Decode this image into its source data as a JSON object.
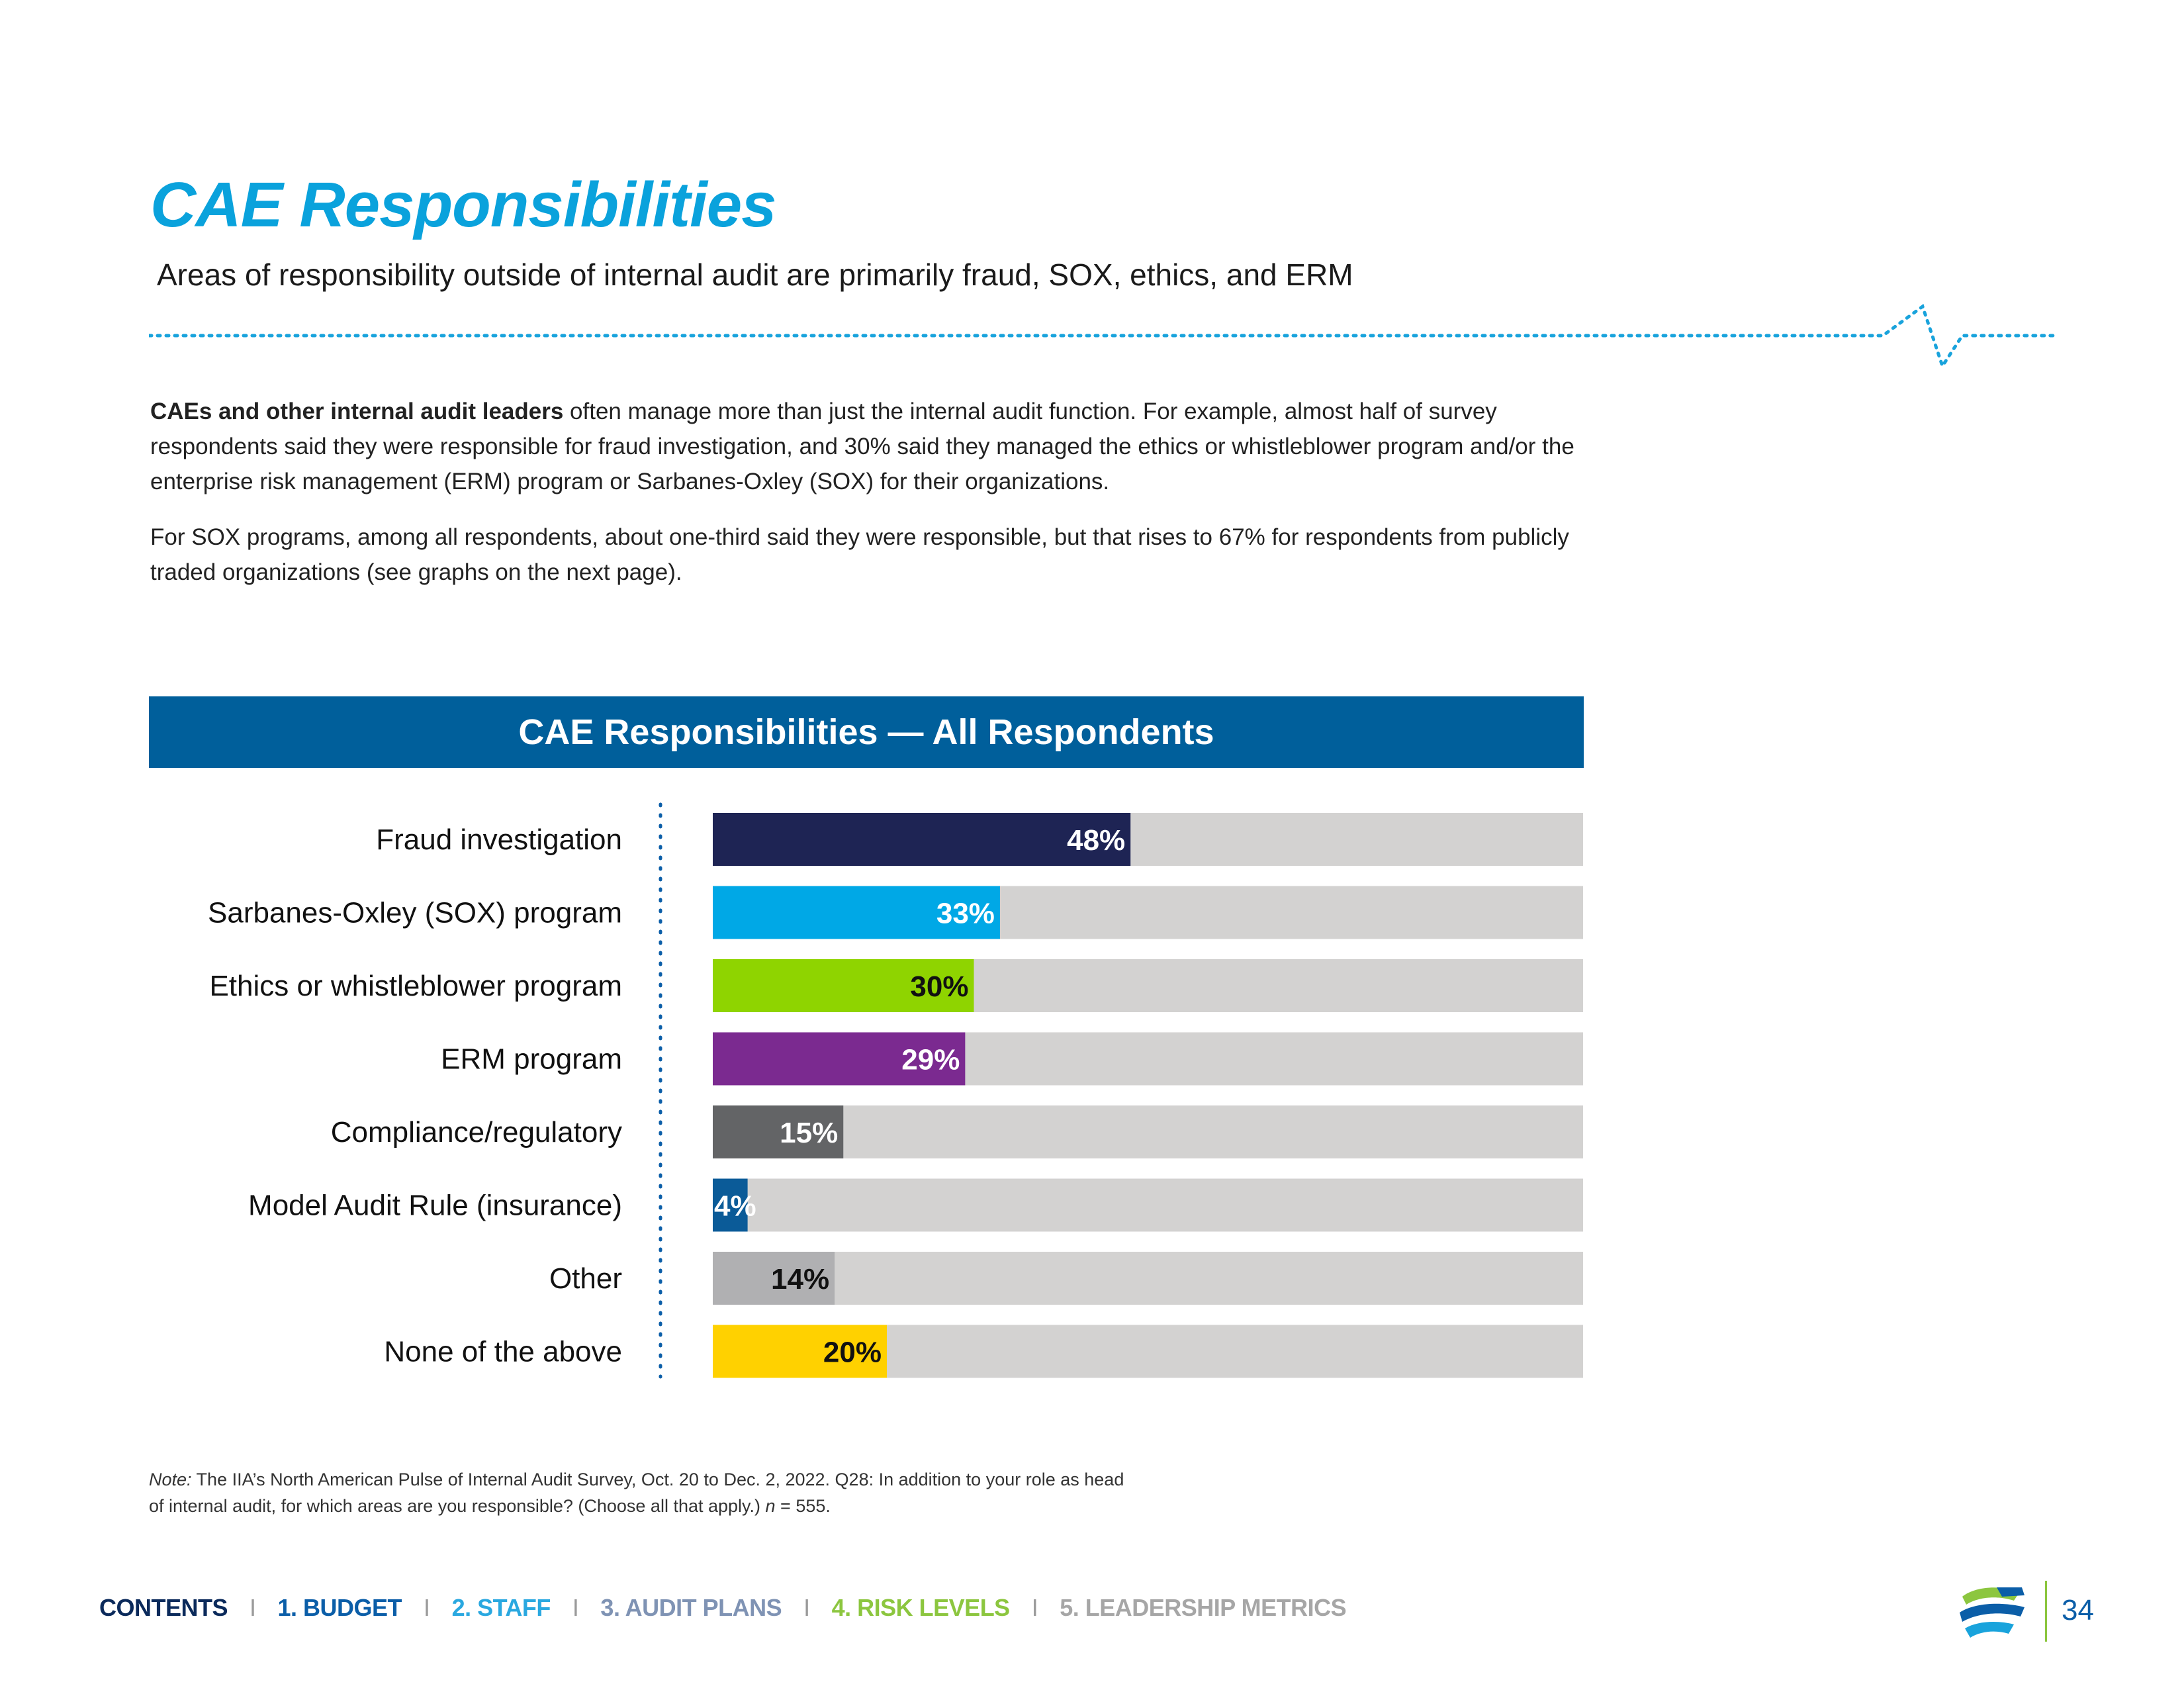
{
  "page": {
    "title": "CAE Responsibilities",
    "subtitle": "Areas of responsibility outside of internal audit are primarily fraud, SOX, ethics, and ERM",
    "body": {
      "p1_lead": "CAEs and other internal audit leaders",
      "p1_rest": " often manage more than just the internal audit function. For example, almost half of survey respondents said they were responsible for fraud investigation, and 30% said they managed the ethics or whistleblower program and/or the enterprise risk management (ERM) program or Sarbanes-Oxley (SOX) for their organizations.",
      "p2": "For SOX programs, among all respondents, about one-third said they were responsible, but that rises to 67% for respondents from publicly traded organizations (see graphs on the next page)."
    },
    "note": {
      "label": "Note:",
      "text_1": " The IIA’s North American Pulse of Internal Audit Survey, Oct. 20 to Dec. 2, 2022. Q28: In addition to your role as head of internal audit, for which areas are you responsible? (Choose all that apply.) ",
      "n_label": "n",
      "text_2": " = 555."
    },
    "footer": {
      "nav": [
        "CONTENTS",
        "1. BUDGET",
        "2. STAFF",
        "3. AUDIT PLANS",
        "4. RISK LEVELS",
        "5. LEADERSHIP METRICS"
      ],
      "separator": "I",
      "page_number": "34"
    }
  },
  "chart_data": {
    "type": "bar",
    "orientation": "horizontal",
    "title": "CAE Responsibilities — All Respondents",
    "xlim": [
      0,
      100
    ],
    "unit": "%",
    "categories": [
      "Fraud investigation",
      "Sarbanes-Oxley (SOX) program",
      "Ethics or whistleblower program",
      "ERM program",
      "Compliance/regulatory",
      "Model Audit Rule (insurance)",
      "Other",
      "None of the above"
    ],
    "values": [
      48,
      33,
      30,
      29,
      15,
      4,
      14,
      20
    ],
    "value_labels": [
      "48%",
      "33%",
      "30%",
      "29%",
      "15%",
      "4%",
      "14%",
      "20%"
    ],
    "bar_colors": [
      "#1e2454",
      "#00a8e6",
      "#8fd400",
      "#7b2a90",
      "#636466",
      "#0b5b98",
      "#b0b0b2",
      "#ffd100"
    ],
    "label_colors": [
      "#ffffff",
      "#ffffff",
      "#111111",
      "#ffffff",
      "#ffffff",
      "#ffffff",
      "#111111",
      "#111111"
    ],
    "track_color": "#d3d2d1",
    "grid": false,
    "legend": "none"
  }
}
